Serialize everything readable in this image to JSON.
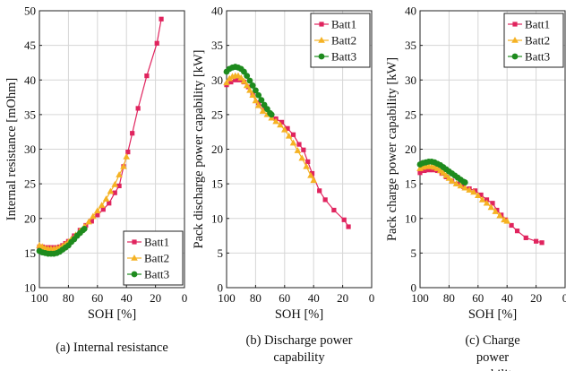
{
  "chart_data": [
    {
      "type": "line",
      "caption": "(a) Internal resistance",
      "xlabel": "SOH [%]",
      "ylabel": "Internal resistance [mOhm]",
      "xlim": [
        100,
        0
      ],
      "ylim": [
        10,
        50
      ],
      "xticks": [
        100,
        80,
        60,
        40,
        20,
        0
      ],
      "yticks": [
        10,
        15,
        20,
        25,
        30,
        35,
        40,
        45,
        50
      ],
      "grid": true,
      "legend_position": "bottom-right",
      "series": [
        {
          "name": "Batt1",
          "color": "#e0245e",
          "marker": "square",
          "points": [
            [
              100,
              15.9
            ],
            [
              98,
              15.9
            ],
            [
              96,
              15.8
            ],
            [
              94,
              15.8
            ],
            [
              92,
              15.8
            ],
            [
              90,
              15.8
            ],
            [
              88,
              15.8
            ],
            [
              86,
              15.9
            ],
            [
              84,
              16.1
            ],
            [
              82,
              16.4
            ],
            [
              80,
              16.7
            ],
            [
              76,
              17.5
            ],
            [
              72,
              18.3
            ],
            [
              68,
              19.0
            ],
            [
              64,
              19.6
            ],
            [
              60,
              20.5
            ],
            [
              56,
              21.3
            ],
            [
              52,
              22.2
            ],
            [
              48,
              23.7
            ],
            [
              45,
              24.7
            ],
            [
              42,
              27.5
            ],
            [
              39,
              29.6
            ],
            [
              36,
              32.3
            ],
            [
              32,
              35.9
            ],
            [
              26,
              40.6
            ],
            [
              19,
              45.3
            ],
            [
              16,
              48.8
            ]
          ]
        },
        {
          "name": "Batt2",
          "color": "#f5b223",
          "marker": "triangle",
          "points": [
            [
              100,
              16.1
            ],
            [
              98,
              15.9
            ],
            [
              96,
              15.7
            ],
            [
              94,
              15.6
            ],
            [
              92,
              15.6
            ],
            [
              90,
              15.6
            ],
            [
              88,
              15.7
            ],
            [
              86,
              15.8
            ],
            [
              84,
              16.0
            ],
            [
              82,
              16.3
            ],
            [
              80,
              16.6
            ],
            [
              78,
              17.0
            ],
            [
              75,
              17.6
            ],
            [
              72,
              18.2
            ],
            [
              69,
              18.8
            ],
            [
              66,
              19.5
            ],
            [
              63,
              20.3
            ],
            [
              60,
              21.1
            ],
            [
              57,
              21.9
            ],
            [
              54,
              22.8
            ],
            [
              51,
              23.9
            ],
            [
              48,
              24.9
            ],
            [
              45,
              26.3
            ],
            [
              42,
              27.5
            ],
            [
              40,
              28.9
            ]
          ]
        },
        {
          "name": "Batt3",
          "color": "#1e8b1e",
          "marker": "circle",
          "points": [
            [
              100,
              15.3
            ],
            [
              98,
              15.1
            ],
            [
              96,
              15.0
            ],
            [
              94,
              14.9
            ],
            [
              92,
              14.9
            ],
            [
              90,
              14.9
            ],
            [
              88,
              15.0
            ],
            [
              86,
              15.2
            ],
            [
              84,
              15.5
            ],
            [
              82,
              15.8
            ],
            [
              80,
              16.1
            ],
            [
              78,
              16.6
            ],
            [
              76,
              17.0
            ],
            [
              74,
              17.5
            ],
            [
              72,
              17.9
            ],
            [
              70,
              18.3
            ],
            [
              69,
              18.5
            ]
          ]
        }
      ]
    },
    {
      "type": "line",
      "caption": "(b) Discharge power capability",
      "xlabel": "SOH [%]",
      "ylabel": "Pack discharge power capability [kW]",
      "xlim": [
        100,
        0
      ],
      "ylim": [
        0,
        40
      ],
      "xticks": [
        100,
        80,
        60,
        40,
        20,
        0
      ],
      "yticks": [
        0,
        5,
        10,
        15,
        20,
        25,
        30,
        35,
        40
      ],
      "grid": true,
      "legend_position": "top-right",
      "series": [
        {
          "name": "Batt1",
          "color": "#e0245e",
          "marker": "square",
          "points": [
            [
              100,
              29.3
            ],
            [
              97,
              29.7
            ],
            [
              94,
              30.0
            ],
            [
              91,
              30.0
            ],
            [
              88,
              29.7
            ],
            [
              85,
              29.0
            ],
            [
              82,
              28.0
            ],
            [
              78,
              26.7
            ],
            [
              74,
              25.9
            ],
            [
              70,
              25.1
            ],
            [
              66,
              24.4
            ],
            [
              62,
              23.9
            ],
            [
              58,
              23.0
            ],
            [
              54,
              22.1
            ],
            [
              50,
              20.7
            ],
            [
              47,
              19.9
            ],
            [
              44,
              18.2
            ],
            [
              41,
              16.5
            ],
            [
              36,
              14.0
            ],
            [
              32,
              12.7
            ],
            [
              26,
              11.2
            ],
            [
              19,
              9.8
            ],
            [
              16,
              8.8
            ]
          ]
        },
        {
          "name": "Batt2",
          "color": "#f5b223",
          "marker": "triangle",
          "points": [
            [
              100,
              29.6
            ],
            [
              98,
              30.2
            ],
            [
              96,
              30.5
            ],
            [
              94,
              30.6
            ],
            [
              92,
              30.6
            ],
            [
              90,
              30.3
            ],
            [
              88,
              29.8
            ],
            [
              86,
              29.2
            ],
            [
              84,
              28.5
            ],
            [
              82,
              27.8
            ],
            [
              80,
              27.0
            ],
            [
              78,
              26.3
            ],
            [
              75,
              25.5
            ],
            [
              72,
              25.0
            ],
            [
              69,
              24.5
            ],
            [
              66,
              24.0
            ],
            [
              63,
              23.5
            ],
            [
              60,
              22.8
            ],
            [
              57,
              21.9
            ],
            [
              54,
              20.9
            ],
            [
              51,
              19.8
            ],
            [
              48,
              18.7
            ],
            [
              45,
              17.5
            ],
            [
              42,
              16.2
            ],
            [
              40,
              15.5
            ]
          ]
        },
        {
          "name": "Batt3",
          "color": "#1e8b1e",
          "marker": "circle",
          "points": [
            [
              100,
              31.2
            ],
            [
              98,
              31.6
            ],
            [
              96,
              31.8
            ],
            [
              94,
              31.9
            ],
            [
              92,
              31.8
            ],
            [
              90,
              31.6
            ],
            [
              88,
              31.2
            ],
            [
              86,
              30.6
            ],
            [
              84,
              29.9
            ],
            [
              82,
              29.2
            ],
            [
              80,
              28.5
            ],
            [
              78,
              27.8
            ],
            [
              76,
              27.1
            ],
            [
              74,
              26.4
            ],
            [
              72,
              25.8
            ],
            [
              70,
              25.2
            ],
            [
              69,
              25.0
            ]
          ]
        }
      ]
    },
    {
      "type": "line",
      "caption": "(c) Charge power capability",
      "xlabel": "SOH [%]",
      "ylabel": "Pack charge power capability [kW]",
      "xlim": [
        100,
        0
      ],
      "ylim": [
        0,
        40
      ],
      "xticks": [
        100,
        80,
        60,
        40,
        20,
        0
      ],
      "yticks": [
        0,
        5,
        10,
        15,
        20,
        25,
        30,
        35,
        40
      ],
      "grid": true,
      "legend_position": "top-right",
      "series": [
        {
          "name": "Batt1",
          "color": "#e0245e",
          "marker": "square",
          "points": [
            [
              100,
              16.6
            ],
            [
              97,
              16.9
            ],
            [
              94,
              17.0
            ],
            [
              91,
              17.0
            ],
            [
              88,
              16.9
            ],
            [
              85,
              16.5
            ],
            [
              82,
              16.0
            ],
            [
              78,
              15.4
            ],
            [
              74,
              15.0
            ],
            [
              70,
              14.6
            ],
            [
              66,
              14.3
            ],
            [
              62,
              14.0
            ],
            [
              58,
              13.4
            ],
            [
              54,
              12.7
            ],
            [
              50,
              12.2
            ],
            [
              47,
              11.2
            ],
            [
              44,
              10.5
            ],
            [
              41,
              9.8
            ],
            [
              37,
              9.0
            ],
            [
              33,
              8.2
            ],
            [
              27,
              7.2
            ],
            [
              20,
              6.7
            ],
            [
              16,
              6.5
            ]
          ]
        },
        {
          "name": "Batt2",
          "color": "#f5b223",
          "marker": "triangle",
          "points": [
            [
              100,
              17.2
            ],
            [
              98,
              17.4
            ],
            [
              96,
              17.5
            ],
            [
              94,
              17.5
            ],
            [
              92,
              17.5
            ],
            [
              90,
              17.4
            ],
            [
              88,
              17.2
            ],
            [
              86,
              16.9
            ],
            [
              84,
              16.6
            ],
            [
              82,
              16.2
            ],
            [
              80,
              15.8
            ],
            [
              78,
              15.4
            ],
            [
              75,
              15.0
            ],
            [
              72,
              14.7
            ],
            [
              69,
              14.4
            ],
            [
              66,
              14.1
            ],
            [
              63,
              13.8
            ],
            [
              60,
              13.3
            ],
            [
              57,
              12.7
            ],
            [
              54,
              12.2
            ],
            [
              51,
              11.6
            ],
            [
              48,
              11.0
            ],
            [
              45,
              10.4
            ],
            [
              42,
              9.8
            ],
            [
              40,
              9.6
            ]
          ]
        },
        {
          "name": "Batt3",
          "color": "#1e8b1e",
          "marker": "circle",
          "points": [
            [
              100,
              17.8
            ],
            [
              98,
              18.0
            ],
            [
              96,
              18.1
            ],
            [
              94,
              18.2
            ],
            [
              92,
              18.2
            ],
            [
              90,
              18.1
            ],
            [
              88,
              17.9
            ],
            [
              86,
              17.7
            ],
            [
              84,
              17.4
            ],
            [
              82,
              17.1
            ],
            [
              80,
              16.8
            ],
            [
              78,
              16.5
            ],
            [
              76,
              16.2
            ],
            [
              74,
              15.9
            ],
            [
              72,
              15.6
            ],
            [
              70,
              15.3
            ],
            [
              69,
              15.2
            ]
          ]
        }
      ]
    }
  ]
}
